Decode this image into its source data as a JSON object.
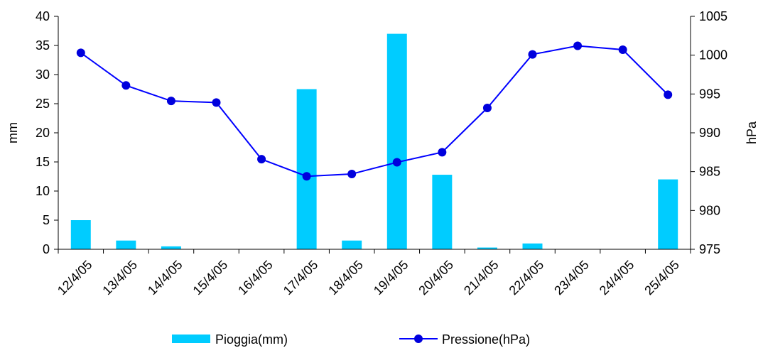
{
  "chart_data": {
    "type": "bar+line",
    "categories": [
      "12/4/05",
      "13/4/05",
      "14/4/05",
      "15/4/05",
      "16/4/05",
      "17/4/05",
      "18/4/05",
      "19/4/05",
      "20/4/05",
      "21/4/05",
      "22/4/05",
      "23/4/05",
      "24/4/05",
      "25/4/05"
    ],
    "series": [
      {
        "name": "Pioggia(mm)",
        "type": "bar",
        "axis": "left",
        "color": "#00ccff",
        "values": [
          5.0,
          1.5,
          0.5,
          0.0,
          0.0,
          27.5,
          1.5,
          37.0,
          12.8,
          0.3,
          1.0,
          0.0,
          0.0,
          12.0
        ]
      },
      {
        "name": "Pressione(hPa)",
        "type": "line",
        "axis": "right",
        "color": "#0000ff",
        "marker_color": "#0000dd",
        "values": [
          1000.3,
          996.1,
          994.1,
          993.9,
          986.6,
          984.4,
          984.7,
          986.2,
          987.5,
          993.2,
          1000.1,
          1001.2,
          1000.7,
          994.9
        ]
      }
    ],
    "ylabel": "mm",
    "y2label": "hPa",
    "ylim": [
      0,
      40
    ],
    "yticks": [
      "0",
      "5",
      "10",
      "15",
      "20",
      "25",
      "30",
      "35",
      "40"
    ],
    "y2lim": [
      975,
      1005
    ],
    "y2ticks": [
      "975",
      "980",
      "985",
      "990",
      "995",
      "1000",
      "1005"
    ],
    "grid": false,
    "legend_position": "bottom"
  }
}
